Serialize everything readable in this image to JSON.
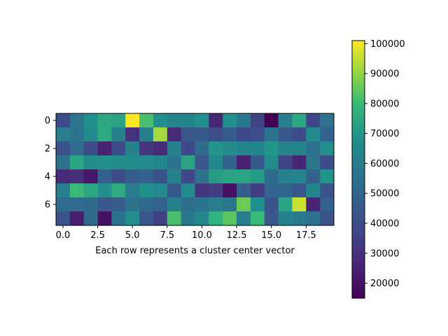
{
  "chart_data": {
    "type": "heatmap",
    "title": "",
    "xlabel": "Each row represents a cluster center vector",
    "ylabel": "",
    "rows": 8,
    "cols": 20,
    "xlim": [
      -0.5,
      19.5
    ],
    "ylim": [
      7.5,
      -0.5
    ],
    "x_ticks": [
      0.0,
      2.5,
      5.0,
      7.5,
      10.0,
      12.5,
      15.0,
      17.5
    ],
    "x_tick_labels": [
      "0.0",
      "2.5",
      "5.0",
      "7.5",
      "10.0",
      "12.5",
      "15.0",
      "17.5"
    ],
    "y_ticks": [
      0,
      2,
      4,
      6
    ],
    "y_tick_labels": [
      "0",
      "2",
      "4",
      "6"
    ],
    "colormap": "viridis",
    "colorbar": {
      "min": 15000,
      "max": 101000,
      "ticks": [
        20000,
        30000,
        40000,
        50000,
        60000,
        70000,
        80000,
        90000,
        100000
      ],
      "tick_labels": [
        "20000",
        "30000",
        "40000",
        "50000",
        "60000",
        "70000",
        "80000",
        "90000",
        "100000"
      ]
    },
    "values": [
      [
        40000,
        57000,
        68000,
        75000,
        74000,
        101000,
        82000,
        68000,
        64000,
        64000,
        68000,
        27000,
        68000,
        58000,
        36000,
        15000,
        60000,
        75000,
        38000,
        55000
      ],
      [
        60000,
        56000,
        66000,
        76000,
        62000,
        30000,
        62000,
        92000,
        28000,
        44000,
        45000,
        40000,
        46000,
        38000,
        41000,
        56000,
        45000,
        40000,
        66000,
        48000
      ],
      [
        42000,
        53000,
        40000,
        25000,
        40000,
        62000,
        32000,
        28000,
        62000,
        38000,
        52000,
        70000,
        66000,
        64000,
        64000,
        70000,
        63000,
        63000,
        55000,
        68000
      ],
      [
        56000,
        74000,
        67000,
        68000,
        67000,
        67000,
        66000,
        65000,
        56000,
        74000,
        44000,
        65000,
        49000,
        25000,
        45000,
        67000,
        37000,
        26000,
        57000,
        40000
      ],
      [
        28000,
        29000,
        22000,
        48000,
        40000,
        47000,
        48000,
        43000,
        62000,
        38000,
        56000,
        72000,
        74000,
        74000,
        72000,
        52000,
        62000,
        63000,
        49000,
        70000
      ],
      [
        60000,
        80000,
        75000,
        68000,
        76000,
        60000,
        68000,
        66000,
        45000,
        66000,
        32000,
        34000,
        20000,
        47000,
        34000,
        50000,
        50000,
        44000,
        64000,
        42000
      ],
      [
        52000,
        53000,
        52000,
        45000,
        47000,
        56000,
        52000,
        48000,
        62000,
        54000,
        56000,
        60000,
        58000,
        86000,
        68000,
        42000,
        74000,
        96000,
        26000,
        48000
      ],
      [
        42000,
        24000,
        52000,
        20000,
        56000,
        68000,
        44000,
        35000,
        82000,
        58000,
        65000,
        78000,
        84000,
        61000,
        80000,
        44000,
        62000,
        58000,
        56000,
        42000
      ]
    ]
  }
}
